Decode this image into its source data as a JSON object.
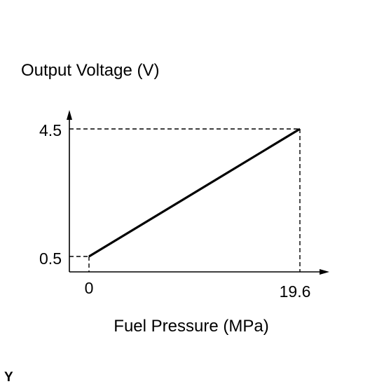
{
  "chart_data": {
    "type": "line",
    "ylabel": "Output Voltage (V)",
    "xlabel": "Fuel Pressure (MPa)",
    "x_ticks": [
      "0",
      "19.6"
    ],
    "y_ticks": [
      "0.5",
      "4.5"
    ],
    "series": [
      {
        "x": [
          0,
          19.6
        ],
        "y": [
          0.5,
          4.5
        ]
      }
    ],
    "reference_lines": "dashed",
    "grid": false
  },
  "corner_mark": "Y"
}
